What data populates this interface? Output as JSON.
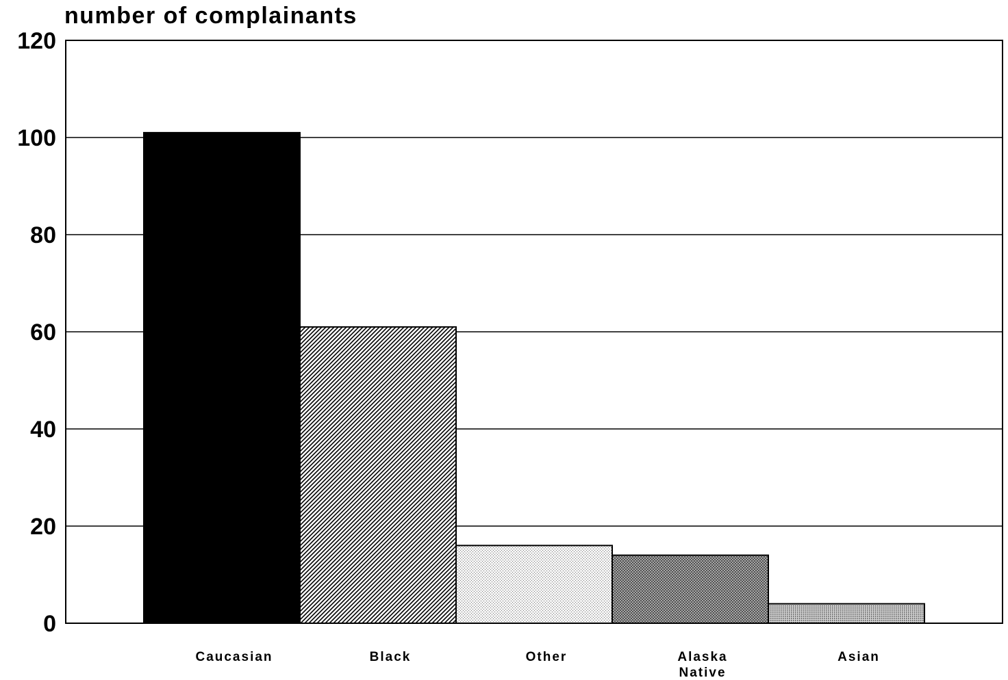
{
  "chart_data": {
    "type": "bar",
    "ylabel": "number of complainants",
    "xlabel": "",
    "categories": [
      [
        "Caucasian"
      ],
      [
        "Black"
      ],
      [
        "Other"
      ],
      [
        "Alaska",
        "Native"
      ],
      [
        "Asian"
      ]
    ],
    "values": [
      101,
      61,
      16,
      14,
      4
    ],
    "ylim": [
      0,
      120
    ],
    "yticks": [
      0,
      20,
      40,
      60,
      80,
      100,
      120
    ],
    "grid": true,
    "bar_fills": [
      "solid-black",
      "diagonal-hatch",
      "light-dots",
      "dark-crosshatch",
      "medium-dots"
    ],
    "colors": {
      "ink": "#000000",
      "background": "#ffffff"
    }
  }
}
